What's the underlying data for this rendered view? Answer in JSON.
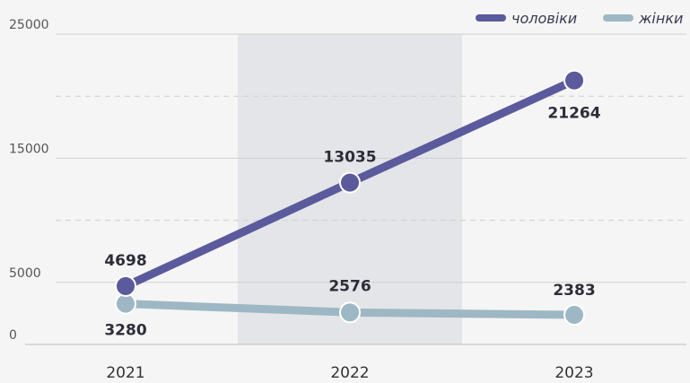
{
  "chart_data": {
    "type": "line",
    "categories": [
      "2021",
      "2022",
      "2023"
    ],
    "series": [
      {
        "name": "чоловіки",
        "color": "#5b5a9c",
        "values": [
          4698,
          13035,
          21264
        ]
      },
      {
        "name": "жінки",
        "color": "#9db8c4",
        "values": [
          3280,
          2576,
          2383
        ]
      }
    ],
    "y_ticks": [
      "25000",
      "15000",
      "5000",
      "0"
    ],
    "y_tick_values": [
      25000,
      15000,
      5000,
      0
    ],
    "ylim": [
      0,
      25000
    ],
    "gridlines": [
      25000,
      20000,
      15000,
      10000,
      5000
    ],
    "dashed_gridlines": [
      20000,
      10000
    ],
    "highlighted_category": "2022",
    "highlight_color": "#e4e5e8",
    "legend_position": "top-right",
    "title": "",
    "xlabel": "",
    "ylabel": ""
  }
}
